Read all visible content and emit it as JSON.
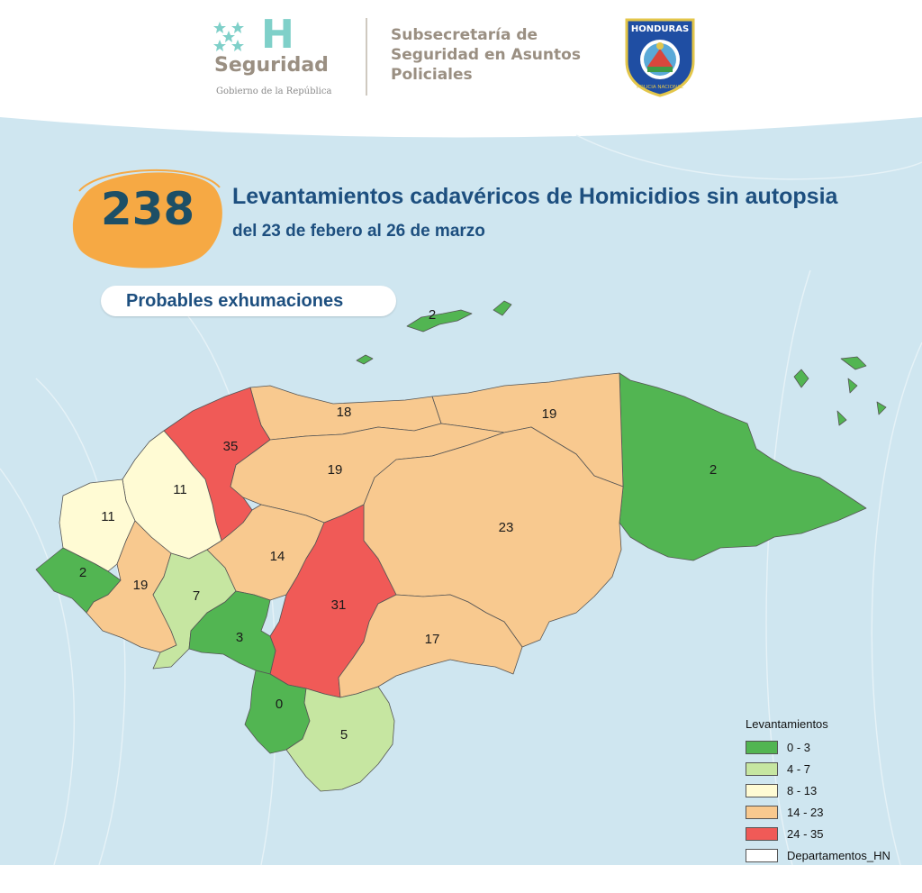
{
  "header": {
    "brand_name": "Seguridad",
    "brand_letter": "H",
    "brand_sub": "Gobierno de la República",
    "subsecretaria": "Subsecretaría de Seguridad en Asuntos Policiales",
    "badge_top": "HONDURAS",
    "badge_bottom": "POLICIA NACIONAL"
  },
  "headline": {
    "total": "238",
    "title": "Levantamientos cadavéricos de Homicidios sin autopsia",
    "subtitle": "del 23 de febero al 26 de marzo",
    "pill": "Probables exhumaciones"
  },
  "colors": {
    "sea": "#cfe6f0",
    "c0_3": "#52b552",
    "c4_7": "#c6e6a1",
    "c8_13": "#fffbd4",
    "c14_23": "#f8c98f",
    "c24_35": "#f05a57",
    "accent_orange": "#f6a944",
    "title_blue": "#1d4f7f"
  },
  "map": {
    "labels": {
      "islas": "2",
      "gracias_a_dios": "2",
      "colon": "19",
      "atlantida": "18",
      "cortes": "35",
      "yoro": "19",
      "olancho": "23",
      "santa_barbara": "11",
      "copan": "11",
      "ocotepeque": "2",
      "lempira": "19",
      "intibuca": "7",
      "comayagua": "14",
      "francisco_morazan": "31",
      "la_paz": "3",
      "el_paraiso": "17",
      "valle": "0",
      "choluteca": "5"
    }
  },
  "legend": {
    "title": "Levantamientos",
    "items": [
      {
        "label": "0 - 3",
        "color": "#52b552"
      },
      {
        "label": "4 - 7",
        "color": "#c6e6a1"
      },
      {
        "label": "8 - 13",
        "color": "#fffbd4"
      },
      {
        "label": "14 - 23",
        "color": "#f8c98f"
      },
      {
        "label": "24 - 35",
        "color": "#f05a57"
      },
      {
        "label": "Departamentos_HN",
        "color": "#ffffff"
      }
    ]
  }
}
